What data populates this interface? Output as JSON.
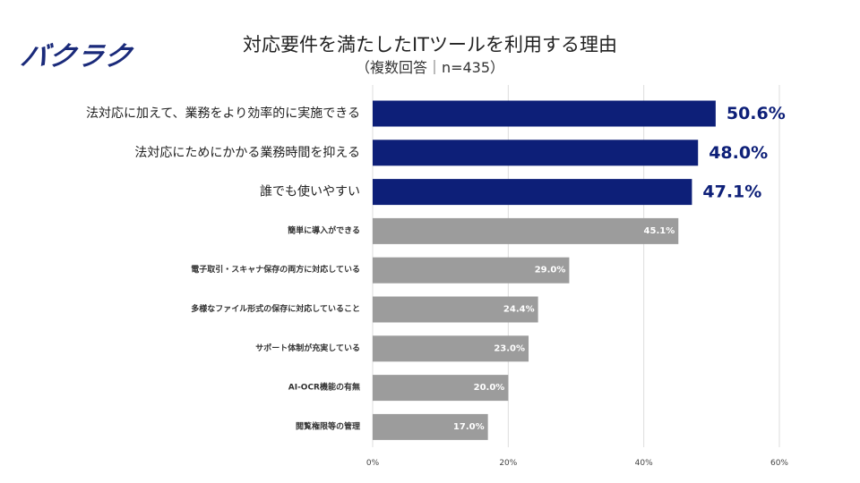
{
  "logo_text": "バクラク",
  "chart_data": {
    "type": "bar",
    "orientation": "horizontal",
    "title": "対応要件を満たしたITツールを利用する理由",
    "subtitle": "（複数回答｜n=435）",
    "categories": [
      "法対応に加えて、業務をより効率的に実施できる",
      "法対応にためにかかる業務時間を抑える",
      "誰でも使いやすい",
      "簡単に導入ができる",
      "電子取引・スキャナ保存の両方に対応している",
      "多様なファイル形式の保存に対応していること",
      "サポート体制が充実している",
      "AI-OCR機能の有無",
      "閲覧権限等の管理"
    ],
    "values": [
      50.6,
      48.0,
      47.1,
      45.1,
      29.0,
      24.4,
      23.0,
      20.0,
      17.0
    ],
    "value_labels": [
      "50.6%",
      "48.0%",
      "47.1%",
      "45.1%",
      "29.0%",
      "24.4%",
      "23.0%",
      "20.0%",
      "17.0%"
    ],
    "highlight_count": 3,
    "xlim": [
      0,
      60
    ],
    "x_ticks": [
      0,
      20,
      40,
      60
    ],
    "x_tick_labels": [
      "0%",
      "20%",
      "40%",
      "60%"
    ],
    "grid": true,
    "colors": {
      "highlight": "#0d1f78",
      "normal": "#9c9c9c",
      "grid": "#dddddd"
    }
  }
}
